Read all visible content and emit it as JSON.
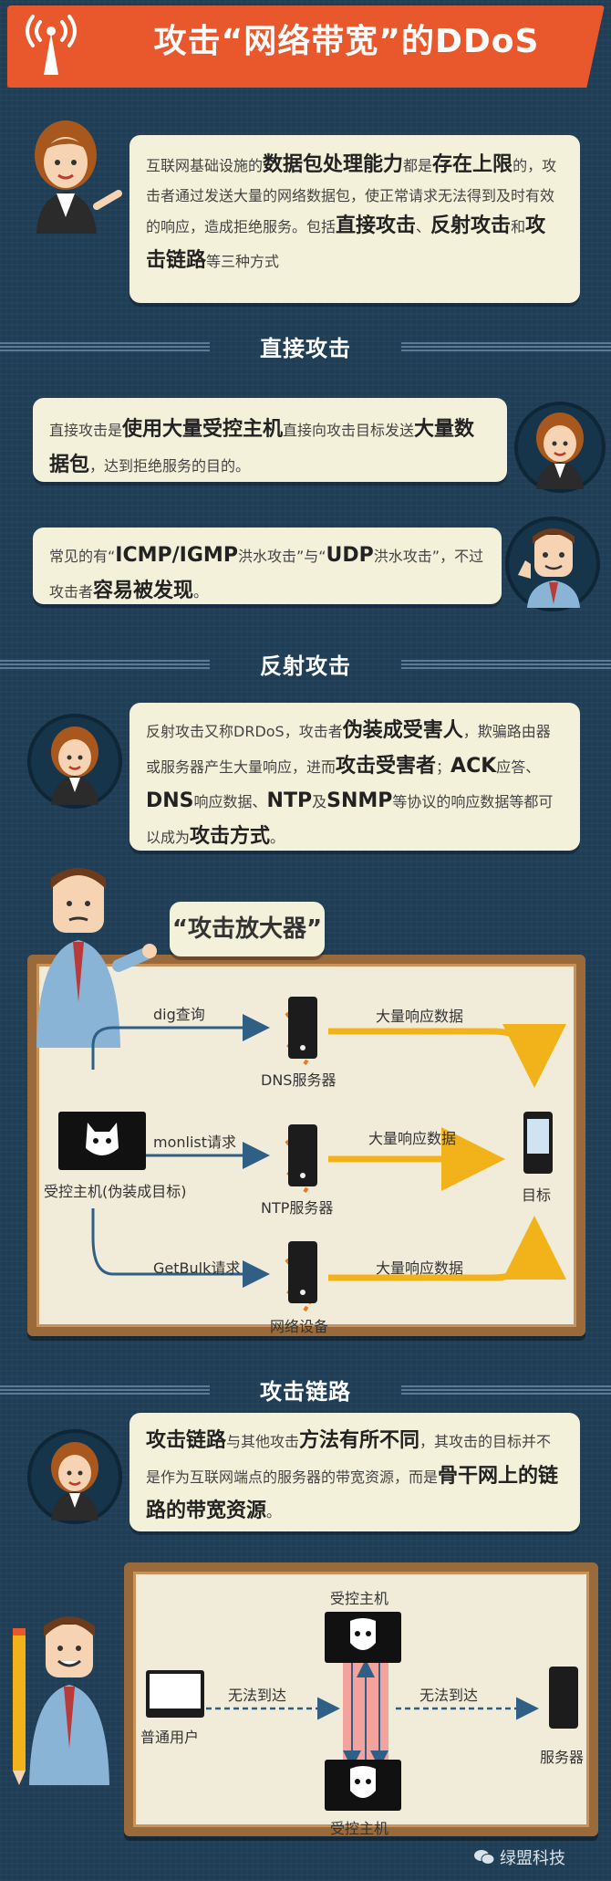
{
  "header": {
    "title": "攻击“网络带宽”的DDoS"
  },
  "intro": {
    "p1": "互联网基础设施的",
    "b1": "数据包处理能力",
    "p2": "都是",
    "b2": "存在上限",
    "p3": "的，攻击者通过发送大量的网络数据包，使正常请求无法得到及时有效的响应，造成拒绝服务。包括",
    "b3": "直接攻击",
    "p4": "、",
    "b4": "反射攻击",
    "p5": "和",
    "b5": "攻击链路",
    "p6": "等三种方式"
  },
  "section_direct": {
    "title": "直接攻击",
    "box1": {
      "p1": "直接攻击是",
      "b1": "使用大量受控主机",
      "p2": "直接向攻击目标发送",
      "b2": "大量数据包",
      "p3": "，达到拒绝服务的目的。"
    },
    "box2": {
      "p1": "常见的有“",
      "b1": "ICMP/IGMP",
      "p2": "洪水攻击”与“",
      "b2": "UDP",
      "p3": "洪水攻击”，不过攻击者",
      "b3": "容易被发现",
      "p4": "。"
    }
  },
  "section_reflect": {
    "title": "反射攻击",
    "box": {
      "p1": "反射攻击又称DRDoS，攻击者",
      "b1": "伪装成受害人",
      "p2": "，欺骗路由器或服务器产生大量响应，进而",
      "b2": "攻击受害者",
      "p3": "；",
      "b3": "ACK",
      "p4": "应答、",
      "b4": "DNS",
      "p5": "响应数据、",
      "b5": "NTP",
      "p6": "及",
      "b6": "SNMP",
      "p7": "等协议的响应数据等都可以成为",
      "b7": "攻击方式",
      "p8": "。"
    },
    "callout": "“攻击放大器”",
    "diagram": {
      "controlled_host": "受控主机(伪装成目标)",
      "target": "目标",
      "rows": [
        {
          "request": "dig查询",
          "server": "DNS服务器",
          "response": "大量响应数据"
        },
        {
          "request": "monlist请求",
          "server": "NTP服务器",
          "response": "大量响应数据"
        },
        {
          "request": "GetBulk请求",
          "server": "网络设备",
          "response": "大量响应数据"
        }
      ]
    }
  },
  "section_link": {
    "title": "攻击链路",
    "box": {
      "b1": "攻击链路",
      "p1": "与其他攻击",
      "b2": "方法有所不同",
      "p2": "，其攻击的目标并不是作为互联网端点的服务器的带宽资源，而是",
      "b3": "骨干网上的链路的带宽资源",
      "p3": "。"
    },
    "diagram": {
      "top_host": "受控主机",
      "bottom_host": "受控主机",
      "user": "普通用户",
      "server": "服务器",
      "left_label": "无法到达",
      "right_label": "无法到达"
    }
  },
  "watermark": "绿盟科技",
  "colors": {
    "background": "#1f3d55",
    "banner": "#e8582c",
    "box": "#f4f1da",
    "board_frame": "#9a6a3b",
    "arrow_blue": "#2f5f85",
    "arrow_yellow": "#f2b21a",
    "arrow_orange": "#ef7a1a"
  }
}
